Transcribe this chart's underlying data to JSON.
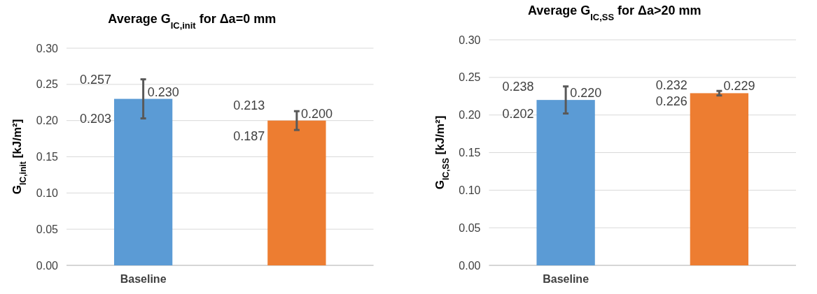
{
  "chart_data": [
    {
      "type": "bar",
      "title": "Average G$_{IC,init}$ for Δa=0 mm",
      "ylabel": "G$_{IC,init}$ [kJ/m²]",
      "categories": [
        "Baseline",
        null
      ],
      "values": [
        0.23,
        0.2
      ],
      "colors": [
        "#5b9bd5",
        "#ed7d31"
      ],
      "errors": [
        [
          0.203,
          0.257
        ],
        [
          0.187,
          0.213
        ]
      ],
      "value_labels": [
        "0.230",
        "0.200"
      ],
      "annotations": [
        {
          "text": "0.257",
          "x": "Baseline",
          "y": 0.257
        },
        {
          "text": "0.203",
          "x": "Baseline",
          "y": 0.203
        },
        "0.213",
        "0.187"
      ],
      "ylim": [
        0,
        0.3
      ],
      "yticks": [
        {
          "value": 0,
          "label": "0.00"
        },
        {
          "value": 0.05,
          "label": "0.05"
        },
        {
          "value": 0.1,
          "label": "0.10"
        },
        {
          "value": 0.15,
          "label": "0.15"
        },
        {
          "value": 0.2,
          "label": "0.20"
        },
        {
          "value": 0.25,
          "label": "0.25"
        },
        {
          "value": 0.3,
          "label": "0.30"
        }
      ],
      "grid": "y",
      "legend": false
    },
    {
      "type": "bar",
      "title": "Average G$_{IC,SS}$ for Δa>20 mm",
      "ylabel": "G$_{IC,SS}$ [kJ/m²]",
      "categories": [
        "Baseline",
        null
      ],
      "values": [
        0.22,
        0.229
      ],
      "colors": [
        "#5b9bd5",
        "#ed7d31"
      ],
      "errors": [
        [
          0.202,
          0.238
        ],
        [
          0.226,
          0.232
        ]
      ],
      "value_labels": [
        "0.220",
        "0.229"
      ],
      "annotations": [
        {
          "text": "0.238",
          "x": "Baseline",
          "y": 0.238
        },
        {
          "text": "0.202",
          "x": "Baseline",
          "y": 0.202
        },
        "0.232",
        "0.226"
      ],
      "ylim": [
        0,
        0.3
      ],
      "yticks": [
        {
          "value": 0,
          "label": "0.00"
        },
        {
          "value": 0.05,
          "label": "0.05"
        },
        {
          "value": 0.1,
          "label": "0.10"
        },
        {
          "value": 0.15,
          "label": "0.15"
        },
        {
          "value": 0.2,
          "label": "0.20"
        },
        {
          "value": 0.25,
          "label": "0.25"
        },
        {
          "value": 0.3,
          "label": "0.30"
        }
      ],
      "grid": "y",
      "legend": false
    }
  ]
}
